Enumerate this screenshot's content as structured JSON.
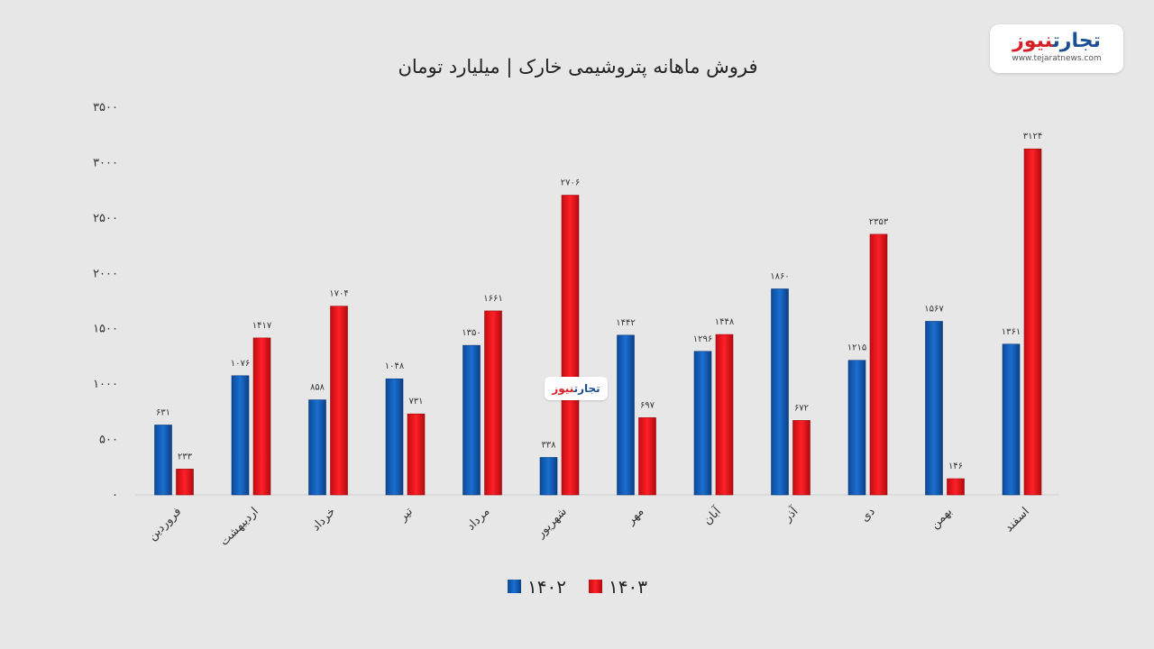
{
  "logo": {
    "text_blue": "تجارت",
    "text_red": "نیوز",
    "url": "www.tejaratnews.com"
  },
  "watermark": {
    "text_blue": "تجارت",
    "text_red": "نیوز"
  },
  "colors": {
    "series_1402": "#1560b8",
    "series_1403": "#e8131a",
    "background": "#e8e7e8"
  },
  "chart_data": {
    "type": "bar",
    "title": "فروش ماهانه پتروشیمی خارک | میلیارد تومان",
    "categories": [
      "فروردین",
      "اردیبهشت",
      "خرداد",
      "تیر",
      "مرداد",
      "شهریور",
      "مهر",
      "آبان",
      "آذر",
      "دی",
      "بهمن",
      "اسفند"
    ],
    "series": [
      {
        "name": "۱۴۰۲",
        "values": [
          631,
          1076,
          858,
          1048,
          1350,
          338,
          1442,
          1296,
          1860,
          1215,
          1567,
          1361
        ],
        "labels": [
          "۶۳۱",
          "۱۰۷۶",
          "۸۵۸",
          "۱۰۴۸",
          "۱۳۵۰",
          "۳۳۸",
          "۱۴۴۲",
          "۱۲۹۶",
          "۱۸۶۰",
          "۱۲۱۵",
          "۱۵۶۷",
          "۱۳۶۱"
        ]
      },
      {
        "name": "۱۴۰۳",
        "values": [
          233,
          1417,
          1704,
          731,
          1661,
          2706,
          697,
          1448,
          672,
          2353,
          146,
          3124
        ],
        "labels": [
          "۲۳۳",
          "۱۴۱۷",
          "۱۷۰۴",
          "۷۳۱",
          "۱۶۶۱",
          "۲۷۰۶",
          "۶۹۷",
          "۱۴۴۸",
          "۶۷۲",
          "۲۳۵۳",
          "۱۴۶",
          "۳۱۲۴"
        ]
      }
    ],
    "ylim": [
      0,
      3500
    ],
    "yticks": [
      0,
      500,
      1000,
      1500,
      2000,
      2500,
      3000,
      3500
    ],
    "ytick_labels": [
      "۰",
      "۵۰۰",
      "۱۰۰۰",
      "۱۵۰۰",
      "۲۰۰۰",
      "۲۵۰۰",
      "۳۰۰۰",
      "۳۵۰۰"
    ],
    "legend_position": "bottom-center",
    "grid": false
  }
}
